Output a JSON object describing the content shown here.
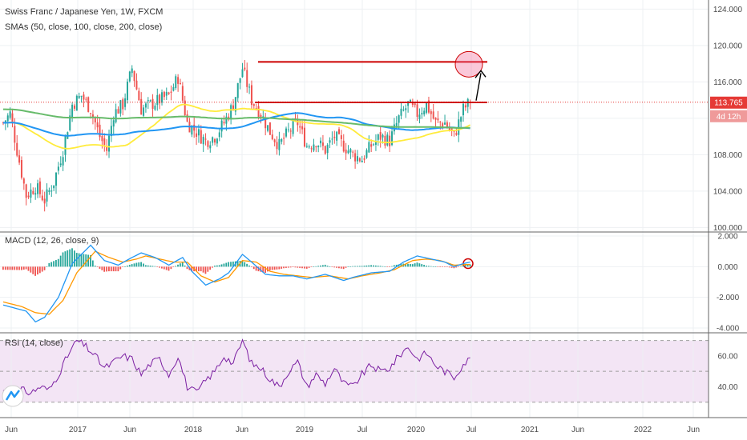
{
  "header": {
    "title": "Swiss Franc / Japanese Yen, 1W, FXCM",
    "sma_legend": "SMAs (50, close, 100, close, 200, close)"
  },
  "price_tag": {
    "value": "113.765",
    "countdown": "4d 12h"
  },
  "colors": {
    "up": "#26a69a",
    "down": "#ef5350",
    "sma50": "#ffeb3b",
    "sma100": "#2196f3",
    "sma200": "#66bb6a",
    "macd": "#2196f3",
    "signal": "#ff9800",
    "rsi": "#7b1fa2",
    "rsi_band": "#f3e5f5",
    "annotation": "#cc0000",
    "price_tag": "#e53935",
    "countdown_tag": "#ef9a9a"
  },
  "chart_data": [
    {
      "type": "candlestick",
      "title": "Swiss Franc / Japanese Yen, 1W, FXCM",
      "subtitle": "SMAs (50, close, 100, close, 200, close)",
      "ylim": [
        99.5,
        125
      ],
      "yticks": [
        100.0,
        104.0,
        108.0,
        112.0,
        116.0,
        120.0,
        124.0
      ],
      "ytick_labels": [
        "100.000",
        "104.000",
        "108.000",
        "112.000",
        "116.000",
        "120.000",
        "124.000"
      ],
      "xticks": [
        "Jun",
        "2017",
        "Jun",
        "2018",
        "Jun",
        "2019",
        "Jul",
        "2020",
        "Jul",
        "2021",
        "Jun",
        "2022",
        "Jun"
      ],
      "last_close": 113.765,
      "anchors": [
        [
          0,
          111.5
        ],
        [
          3,
          112.5
        ],
        [
          6,
          108.5
        ],
        [
          10,
          103.5
        ],
        [
          14,
          104.5
        ],
        [
          18,
          103.0
        ],
        [
          22,
          105.0
        ],
        [
          26,
          108.5
        ],
        [
          30,
          113.5
        ],
        [
          34,
          114.5
        ],
        [
          38,
          113.0
        ],
        [
          42,
          110.0
        ],
        [
          45,
          108.5
        ],
        [
          48,
          112.5
        ],
        [
          52,
          113.5
        ],
        [
          56,
          117.5
        ],
        [
          60,
          113.0
        ],
        [
          64,
          113.5
        ],
        [
          68,
          114.0
        ],
        [
          72,
          114.5
        ],
        [
          76,
          116.5
        ],
        [
          80,
          111.5
        ],
        [
          84,
          110.5
        ],
        [
          88,
          109.5
        ],
        [
          92,
          110.0
        ],
        [
          96,
          111.5
        ],
        [
          100,
          113.5
        ],
        [
          104,
          117.5
        ],
        [
          108,
          114.0
        ],
        [
          112,
          112.5
        ],
        [
          116,
          110.5
        ],
        [
          120,
          109.0
        ],
        [
          124,
          110.5
        ],
        [
          128,
          111.5
        ],
        [
          132,
          109.0
        ],
        [
          136,
          109.5
        ],
        [
          140,
          108.5
        ],
        [
          144,
          110.0
        ],
        [
          148,
          109.0
        ],
        [
          152,
          108.0
        ],
        [
          156,
          107.5
        ],
        [
          160,
          109.0
        ],
        [
          164,
          110.0
        ],
        [
          168,
          109.5
        ],
        [
          172,
          112.0
        ],
        [
          176,
          113.5
        ],
        [
          180,
          112.5
        ],
        [
          184,
          113.5
        ],
        [
          188,
          111.5
        ],
        [
          192,
          111.5
        ],
        [
          196,
          110.0
        ],
        [
          200,
          113.0
        ],
        [
          203,
          113.765
        ]
      ],
      "annotations": {
        "resistance_upper": 118.2,
        "resistance_lower": 113.75,
        "target_circle": 118.2
      }
    },
    {
      "type": "line",
      "title": "MACD (12, 26, close, 9)",
      "ylim": [
        -4.0,
        2.0
      ],
      "yticks": [
        2.0,
        0.0,
        -2.0,
        -4.0
      ],
      "ytick_labels": [
        "2.000",
        "0.000",
        "-2.000",
        "-4.000"
      ],
      "macd_anchors": [
        [
          0,
          -2.5
        ],
        [
          10,
          -2.9
        ],
        [
          14,
          -3.6
        ],
        [
          18,
          -3.3
        ],
        [
          24,
          -2.0
        ],
        [
          30,
          0.2
        ],
        [
          38,
          1.4
        ],
        [
          44,
          0.4
        ],
        [
          50,
          0.1
        ],
        [
          56,
          0.6
        ],
        [
          60,
          0.9
        ],
        [
          66,
          0.6
        ],
        [
          72,
          0.1
        ],
        [
          78,
          0.6
        ],
        [
          82,
          -0.3
        ],
        [
          88,
          -1.2
        ],
        [
          94,
          -0.8
        ],
        [
          98,
          -0.4
        ],
        [
          104,
          0.8
        ],
        [
          108,
          0.3
        ],
        [
          114,
          -0.5
        ],
        [
          120,
          -0.6
        ],
        [
          126,
          -0.6
        ],
        [
          132,
          -0.8
        ],
        [
          140,
          -0.5
        ],
        [
          148,
          -0.9
        ],
        [
          152,
          -0.7
        ],
        [
          160,
          -0.4
        ],
        [
          168,
          -0.3
        ],
        [
          174,
          0.3
        ],
        [
          180,
          0.7
        ],
        [
          186,
          0.5
        ],
        [
          192,
          0.3
        ],
        [
          196,
          0.0
        ],
        [
          200,
          0.2
        ],
        [
          203,
          0.3
        ]
      ],
      "signal_anchors": [
        [
          0,
          -2.3
        ],
        [
          8,
          -2.6
        ],
        [
          14,
          -3.0
        ],
        [
          20,
          -3.1
        ],
        [
          26,
          -2.2
        ],
        [
          32,
          -0.4
        ],
        [
          40,
          1.0
        ],
        [
          46,
          0.6
        ],
        [
          52,
          0.3
        ],
        [
          58,
          0.5
        ],
        [
          62,
          0.7
        ],
        [
          68,
          0.5
        ],
        [
          74,
          0.3
        ],
        [
          80,
          0.3
        ],
        [
          86,
          -0.6
        ],
        [
          92,
          -1.0
        ],
        [
          98,
          -0.7
        ],
        [
          104,
          0.4
        ],
        [
          110,
          0.3
        ],
        [
          116,
          -0.3
        ],
        [
          122,
          -0.5
        ],
        [
          128,
          -0.6
        ],
        [
          134,
          -0.7
        ],
        [
          142,
          -0.6
        ],
        [
          150,
          -0.8
        ],
        [
          156,
          -0.6
        ],
        [
          164,
          -0.4
        ],
        [
          170,
          -0.2
        ],
        [
          178,
          0.4
        ],
        [
          184,
          0.5
        ],
        [
          190,
          0.4
        ],
        [
          196,
          0.1
        ],
        [
          203,
          0.15
        ]
      ]
    },
    {
      "type": "line",
      "title": "RSI (14, close)",
      "ylim": [
        20,
        75
      ],
      "band": [
        30,
        70
      ],
      "yticks": [
        60.0,
        40.0
      ],
      "ytick_labels": [
        "60.00",
        "40.00"
      ],
      "anchors": [
        [
          0,
          38
        ],
        [
          4,
          30
        ],
        [
          8,
          38
        ],
        [
          12,
          36
        ],
        [
          16,
          40
        ],
        [
          20,
          38
        ],
        [
          24,
          48
        ],
        [
          28,
          60
        ],
        [
          32,
          70
        ],
        [
          36,
          66
        ],
        [
          40,
          60
        ],
        [
          44,
          52
        ],
        [
          48,
          56
        ],
        [
          52,
          60
        ],
        [
          56,
          58
        ],
        [
          60,
          48
        ],
        [
          64,
          55
        ],
        [
          68,
          58
        ],
        [
          72,
          48
        ],
        [
          76,
          60
        ],
        [
          80,
          40
        ],
        [
          84,
          36
        ],
        [
          88,
          44
        ],
        [
          92,
          50
        ],
        [
          96,
          60
        ],
        [
          100,
          55
        ],
        [
          104,
          70
        ],
        [
          108,
          55
        ],
        [
          112,
          52
        ],
        [
          116,
          45
        ],
        [
          120,
          40
        ],
        [
          124,
          50
        ],
        [
          128,
          56
        ],
        [
          132,
          40
        ],
        [
          136,
          48
        ],
        [
          140,
          42
        ],
        [
          144,
          52
        ],
        [
          148,
          42
        ],
        [
          152,
          40
        ],
        [
          156,
          48
        ],
        [
          160,
          54
        ],
        [
          164,
          50
        ],
        [
          168,
          52
        ],
        [
          172,
          60
        ],
        [
          176,
          66
        ],
        [
          180,
          58
        ],
        [
          184,
          62
        ],
        [
          188,
          54
        ],
        [
          192,
          50
        ],
        [
          196,
          46
        ],
        [
          200,
          55
        ],
        [
          203,
          58
        ]
      ]
    }
  ]
}
